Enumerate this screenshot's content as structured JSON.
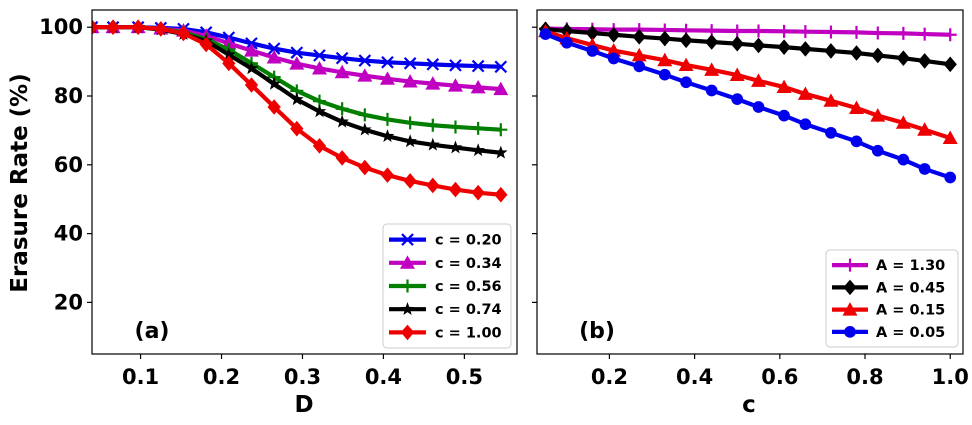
{
  "chart_data": [
    {
      "type": "line",
      "panel_label": "(a)",
      "xlabel": "D",
      "ylabel": "Erasure Rate (%)",
      "xlim": [
        0.04,
        0.565
      ],
      "ylim": [
        5,
        105
      ],
      "xticks": [
        0.1,
        0.2,
        0.3,
        0.4,
        0.5
      ],
      "xtick_labels": [
        "0.1",
        "0.2",
        "0.3",
        "0.4",
        "0.5"
      ],
      "yticks": [
        20,
        40,
        60,
        80,
        100
      ],
      "ytick_labels": [
        "20",
        "40",
        "60",
        "80",
        "100"
      ],
      "legend_position": "lower-right",
      "x": [
        0.04,
        0.066,
        0.097,
        0.125,
        0.153,
        0.181,
        0.209,
        0.237,
        0.265,
        0.293,
        0.321,
        0.349,
        0.377,
        0.405,
        0.433,
        0.461,
        0.489,
        0.517,
        0.545
      ],
      "series": [
        {
          "name": "c = 0.20",
          "color": "#0000ee",
          "marker": "x",
          "values": [
            100,
            100,
            100,
            99.8,
            99.5,
            98.5,
            97,
            95.3,
            93.8,
            92.6,
            91.8,
            91.0,
            90.3,
            89.8,
            89.5,
            89.2,
            88.9,
            88.7,
            88.5
          ]
        },
        {
          "name": "c = 0.34",
          "color": "#c000c0",
          "marker": "triangle",
          "values": [
            100,
            100,
            100,
            99.6,
            99,
            97.5,
            95.3,
            93.2,
            91.2,
            89.4,
            88.0,
            86.9,
            85.9,
            85.0,
            84.2,
            83.6,
            83.0,
            82.5,
            82.0
          ]
        },
        {
          "name": "c = 0.56",
          "color": "#007f00",
          "marker": "plus",
          "values": [
            100,
            100,
            100,
            99.5,
            98.5,
            96.5,
            93.5,
            89.5,
            85.5,
            81.5,
            78.5,
            76.3,
            74.5,
            73.2,
            72.2,
            71.5,
            71.0,
            70.6,
            70.2
          ]
        },
        {
          "name": "c = 0.74",
          "color": "#000000",
          "marker": "star",
          "values": [
            100,
            100,
            100,
            99.3,
            98,
            96,
            92,
            88,
            83.5,
            79,
            75.5,
            72.5,
            70.2,
            68.3,
            66.8,
            65.8,
            65.0,
            64.2,
            63.5
          ]
        },
        {
          "name": "c = 1.00",
          "color": "#ee0000",
          "marker": "diamond",
          "values": [
            100,
            100,
            100,
            99.5,
            98.2,
            95,
            89.5,
            83.2,
            76.8,
            70.5,
            65.5,
            62,
            59.2,
            57.0,
            55.3,
            54.0,
            52.8,
            51.9,
            51.3
          ]
        }
      ]
    },
    {
      "type": "line",
      "panel_label": "(b)",
      "xlabel": "c",
      "ylabel": "",
      "xlim": [
        0.03,
        1.03
      ],
      "ylim": [
        5,
        105
      ],
      "xticks": [
        0.2,
        0.4,
        0.6,
        0.8,
        1.0
      ],
      "xtick_labels": [
        "0.2",
        "0.4",
        "0.6",
        "0.8",
        "1.0"
      ],
      "legend_position": "lower-right",
      "x": [
        0.05,
        0.1,
        0.16,
        0.21,
        0.27,
        0.33,
        0.38,
        0.44,
        0.5,
        0.55,
        0.61,
        0.66,
        0.72,
        0.78,
        0.83,
        0.89,
        0.94,
        1.0
      ],
      "series": [
        {
          "name": "A = 1.30",
          "color": "#c000c0",
          "marker": "plus",
          "values": [
            99.6,
            99.5,
            99.4,
            99.3,
            99.3,
            99.2,
            99.1,
            99.0,
            98.9,
            98.9,
            98.8,
            98.7,
            98.6,
            98.5,
            98.3,
            98.2,
            98.0,
            97.8
          ]
        },
        {
          "name": "A = 0.45",
          "color": "#000000",
          "marker": "diamond",
          "values": [
            99.4,
            98.9,
            98.3,
            97.8,
            97.2,
            96.7,
            96.2,
            95.7,
            95.2,
            94.7,
            94.2,
            93.7,
            93.1,
            92.5,
            91.8,
            91.0,
            90.2,
            89.2
          ]
        },
        {
          "name": "A = 0.15",
          "color": "#ee0000",
          "marker": "triangle",
          "values": [
            98.8,
            96.8,
            94.8,
            93.2,
            91.8,
            90.4,
            89.0,
            87.6,
            86.1,
            84.4,
            82.6,
            80.6,
            78.6,
            76.5,
            74.3,
            72.2,
            70.2,
            67.8
          ]
        },
        {
          "name": "A = 0.05",
          "color": "#0000ee",
          "marker": "circle",
          "values": [
            98.0,
            95.5,
            93.1,
            90.9,
            88.6,
            86.2,
            84.0,
            81.6,
            79.1,
            76.8,
            74.3,
            71.8,
            69.3,
            66.8,
            64.1,
            61.5,
            58.8,
            56.3
          ]
        }
      ]
    }
  ]
}
